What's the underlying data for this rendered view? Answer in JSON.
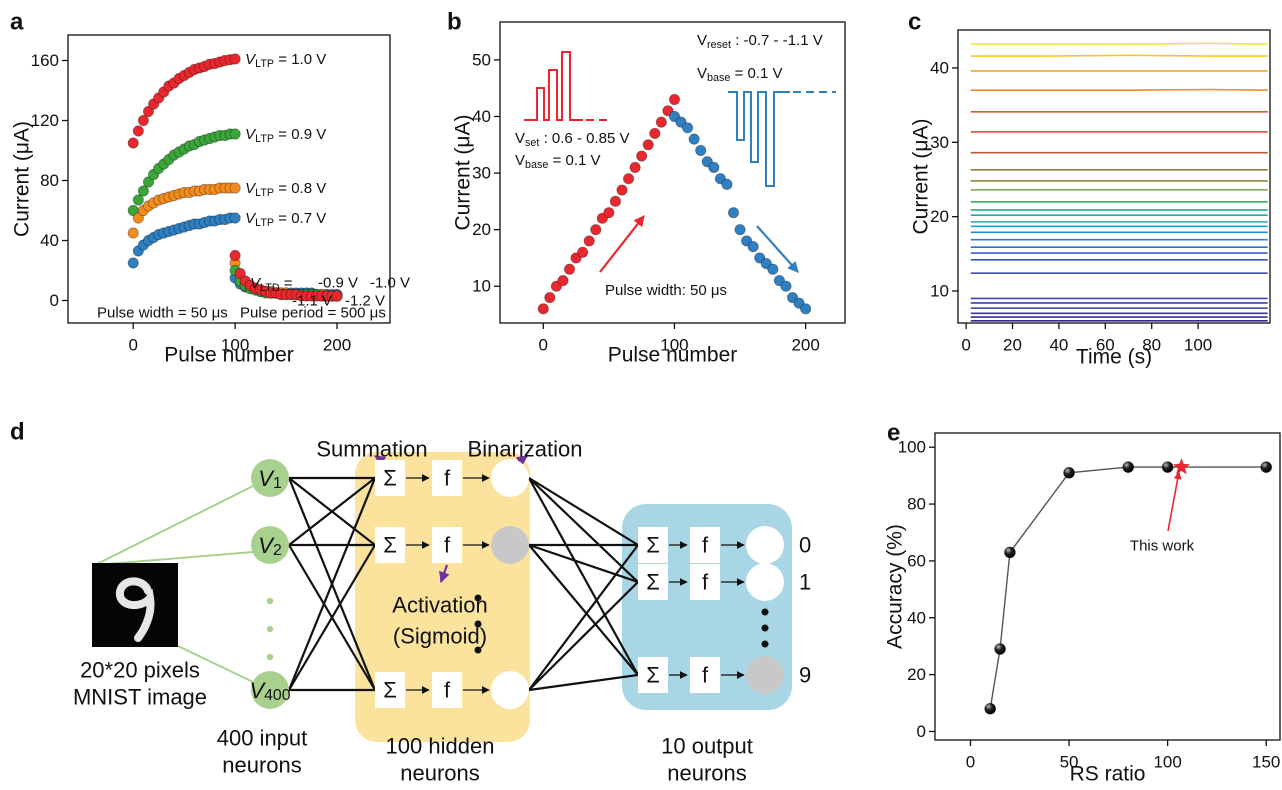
{
  "chart_data": [
    {
      "type": "scatter",
      "panel_label": "a",
      "xlabel": "Pulse number",
      "ylabel": "Current (μA)",
      "xlim": [
        -64,
        252
      ],
      "ylim": [
        -15,
        177
      ],
      "xticks": [
        0,
        100,
        200
      ],
      "yticks": [
        0,
        40,
        80,
        120,
        160
      ],
      "series": [
        {
          "label_parts": [
            {
              "text": "V",
              "style": "italic"
            },
            {
              "text": "LTP",
              "style": "sub"
            },
            {
              "text": " = 1.0 V"
            }
          ],
          "color": "#e8282e",
          "x": [
            0,
            5,
            10,
            15,
            20,
            25,
            30,
            35,
            40,
            45,
            50,
            55,
            60,
            65,
            70,
            75,
            80,
            85,
            90,
            95,
            100
          ],
          "values": [
            105,
            113,
            120,
            126,
            131,
            135,
            139,
            143,
            145,
            148,
            150,
            152,
            154,
            155,
            156,
            157.5,
            158,
            159,
            160,
            160.5,
            161
          ]
        },
        {
          "label_parts": [
            {
              "text": "V",
              "style": "italic"
            },
            {
              "text": "LTP",
              "style": "sub"
            },
            {
              "text": " = 0.9 V"
            }
          ],
          "color": "#3aa63a",
          "x": [
            0,
            5,
            10,
            15,
            20,
            25,
            30,
            35,
            40,
            45,
            50,
            55,
            60,
            65,
            70,
            75,
            80,
            85,
            90,
            95,
            100
          ],
          "values": [
            60,
            67,
            73,
            79,
            84,
            88,
            91,
            94,
            97,
            99,
            101,
            103,
            104,
            106,
            107,
            108,
            109,
            110,
            110,
            111,
            111
          ]
        },
        {
          "label_parts": [
            {
              "text": "V",
              "style": "italic"
            },
            {
              "text": "LTP",
              "style": "sub"
            },
            {
              "text": " = 0.8 V"
            }
          ],
          "color": "#f28c1e",
          "x": [
            0,
            5,
            10,
            15,
            20,
            25,
            30,
            35,
            40,
            45,
            50,
            55,
            60,
            65,
            70,
            75,
            80,
            85,
            90,
            95,
            100
          ],
          "values": [
            45,
            55,
            60,
            63,
            65,
            67,
            68,
            69,
            70,
            71,
            72,
            72,
            73,
            73,
            74,
            74,
            74,
            75,
            75,
            75,
            75
          ]
        },
        {
          "label_parts": [
            {
              "text": "V",
              "style": "italic"
            },
            {
              "text": "LTP",
              "style": "sub"
            },
            {
              "text": " = 0.7 V"
            }
          ],
          "color": "#2f7fc1",
          "x": [
            0,
            5,
            10,
            15,
            20,
            25,
            30,
            35,
            40,
            45,
            50,
            55,
            60,
            65,
            70,
            75,
            80,
            85,
            90,
            95,
            100
          ],
          "values": [
            25,
            33,
            37,
            40,
            42,
            44,
            45,
            46,
            47,
            48,
            49,
            50,
            51,
            51,
            52,
            53,
            53,
            54,
            54,
            55,
            55
          ]
        },
        {
          "name": "-0.9 V",
          "color": "#2f7fc1",
          "x": [
            100,
            105,
            110,
            115,
            120,
            125,
            130,
            135,
            140,
            145,
            150,
            155,
            160,
            165,
            170,
            175,
            180,
            185,
            190,
            195,
            200
          ],
          "values": [
            15,
            11,
            9,
            8,
            7,
            6,
            6,
            5,
            5,
            5,
            5,
            5,
            5,
            5,
            5,
            5,
            4,
            4,
            4,
            4,
            4
          ]
        },
        {
          "name": "-1.0 V",
          "color": "#f28c1e",
          "x": [
            100,
            105,
            110,
            115,
            120,
            125,
            130,
            135,
            140,
            145,
            150,
            155,
            160,
            165,
            170,
            175,
            180,
            185,
            190,
            195,
            200
          ],
          "values": [
            25,
            15,
            11,
            9,
            8,
            7,
            6,
            6,
            5,
            5,
            5,
            4,
            4,
            4,
            4,
            4,
            4,
            4,
            3,
            3,
            3
          ]
        },
        {
          "name": "-1.1 V",
          "color": "#3aa63a",
          "x": [
            100,
            105,
            110,
            115,
            120,
            125,
            130,
            135,
            140,
            145,
            150,
            155,
            160,
            165,
            170,
            175,
            180,
            185,
            190,
            195,
            200
          ],
          "values": [
            20,
            13,
            10,
            8,
            7,
            6,
            5,
            5,
            5,
            4,
            4,
            4,
            4,
            4,
            4,
            4,
            4,
            3,
            3,
            3,
            3
          ]
        },
        {
          "name": "-1.2 V",
          "color": "#e8282e",
          "x": [
            100,
            105,
            110,
            115,
            120,
            125,
            130,
            135,
            140,
            145,
            150,
            155,
            160,
            165,
            170,
            175,
            180,
            185,
            190,
            195,
            200
          ],
          "values": [
            30,
            18,
            13,
            10,
            8,
            7,
            6,
            5,
            5,
            4,
            4,
            4,
            4,
            3,
            3,
            3,
            3,
            3,
            3,
            3,
            3
          ]
        }
      ],
      "ltd_label_parts": [
        {
          "text": "V",
          "style": "italic"
        },
        {
          "text": "LTD",
          "style": "sub"
        },
        {
          "text": " = "
        }
      ],
      "annotations": [
        "Pulse width = 50 μs",
        "Pulse period = 500 μs"
      ]
    },
    {
      "type": "scatter",
      "panel_label": "b",
      "xlabel": "Pulse number",
      "ylabel": "Current (μA)",
      "xlim": [
        -33,
        230
      ],
      "ylim": [
        3.5,
        56.7
      ],
      "xticks": [
        0,
        100,
        200
      ],
      "yticks": [
        10,
        20,
        30,
        40,
        50
      ],
      "series": [
        {
          "color": "#e8282e",
          "x": [
            0,
            5,
            10,
            15,
            20,
            25,
            30,
            35,
            40,
            45,
            50,
            55,
            60,
            65,
            70,
            75,
            80,
            85,
            90,
            95,
            100
          ],
          "values": [
            6,
            8,
            10,
            11,
            13,
            15,
            16,
            18,
            20,
            22,
            23,
            25,
            27,
            29,
            31,
            33,
            35,
            37,
            39,
            41,
            43
          ]
        },
        {
          "color": "#2f7fc1",
          "x": [
            100,
            105,
            110,
            115,
            120,
            125,
            130,
            135,
            140,
            145,
            150,
            155,
            160,
            165,
            170,
            175,
            180,
            185,
            190,
            195,
            200
          ],
          "values": [
            40,
            39,
            38,
            36,
            34,
            32,
            31,
            29,
            28,
            23,
            20,
            18,
            17,
            15,
            14,
            13,
            11,
            10,
            8,
            7,
            6
          ]
        }
      ],
      "annotations": [
        {
          "color": "#e8282e",
          "parts": [
            {
              "text": "V"
            },
            {
              "text": "set",
              "style": "sub"
            },
            {
              "text": " : 0.6 - 0.85 V"
            }
          ]
        },
        {
          "color": "#e8282e",
          "parts": [
            {
              "text": "V"
            },
            {
              "text": "base",
              "style": "sub"
            },
            {
              "text": " = 0.1 V"
            }
          ]
        },
        {
          "color": "#2f7fc1",
          "parts": [
            {
              "text": "V"
            },
            {
              "text": "reset",
              "style": "sub"
            },
            {
              "text": " : -0.7 - -1.1 V"
            }
          ]
        },
        {
          "color": "#2f7fc1",
          "parts": [
            {
              "text": "V"
            },
            {
              "text": "base",
              "style": "sub"
            },
            {
              "text": " = 0.1 V"
            }
          ]
        },
        {
          "color": "#111111",
          "parts": [
            {
              "text": "Pulse width: 50 μs"
            }
          ]
        }
      ]
    },
    {
      "type": "line",
      "panel_label": "c",
      "xlabel": "Time (s)",
      "ylabel": "Current (μA)",
      "xlim": [
        -3.5,
        131
      ],
      "ylim": [
        5.7,
        45.1
      ],
      "xticks": [
        0,
        20,
        40,
        60,
        80,
        100
      ],
      "yticks": [
        10,
        20,
        30,
        40
      ],
      "x": [
        2,
        35,
        70,
        105,
        130
      ],
      "series": [
        {
          "color": "#efe23a",
          "values": [
            43.2,
            43.2,
            43.2,
            43.3,
            43.2
          ]
        },
        {
          "color": "#f4c62c",
          "values": [
            41.6,
            41.6,
            41.7,
            41.6,
            41.6
          ]
        },
        {
          "color": "#f2a426",
          "values": [
            39.6,
            39.6,
            39.6,
            39.6,
            39.6
          ]
        },
        {
          "color": "#ef8a2b",
          "values": [
            37.0,
            37.0,
            37.0,
            37.1,
            37.0
          ]
        },
        {
          "color": "#e8532a",
          "values": [
            34.1,
            34.1,
            34.1,
            34.1,
            34.1
          ]
        },
        {
          "color": "#d8452e",
          "values": [
            31.4,
            31.4,
            31.4,
            31.4,
            31.4
          ]
        },
        {
          "color": "#b55d3b",
          "values": [
            28.6,
            28.6,
            28.6,
            28.6,
            28.6
          ]
        },
        {
          "color": "#9b7a3d",
          "values": [
            26.3,
            26.3,
            26.3,
            26.3,
            26.3
          ]
        },
        {
          "color": "#8a8a3e",
          "values": [
            24.8,
            24.8,
            24.8,
            24.8,
            24.8
          ]
        },
        {
          "color": "#6fa64a",
          "values": [
            23.6,
            23.6,
            23.6,
            23.6,
            23.6
          ]
        },
        {
          "color": "#3faa5d",
          "values": [
            22.0,
            22.0,
            22.0,
            22.0,
            22.0
          ]
        },
        {
          "color": "#2aa887",
          "values": [
            20.9,
            20.9,
            20.9,
            20.9,
            20.9
          ]
        },
        {
          "color": "#23a9a6",
          "values": [
            20.2,
            20.2,
            20.2,
            20.2,
            20.2
          ]
        },
        {
          "color": "#1fa5c0",
          "values": [
            19.3,
            19.3,
            19.3,
            19.3,
            19.3
          ]
        },
        {
          "color": "#1e9fd0",
          "values": [
            18.7,
            18.7,
            18.7,
            18.7,
            18.7
          ]
        },
        {
          "color": "#2390d6",
          "values": [
            17.9,
            17.9,
            17.9,
            17.9,
            17.9
          ]
        },
        {
          "color": "#2a7fd5",
          "values": [
            16.9,
            16.9,
            16.9,
            16.9,
            16.9
          ]
        },
        {
          "color": "#2e6ecb",
          "values": [
            15.9,
            15.9,
            15.9,
            15.9,
            15.9
          ]
        },
        {
          "color": "#3461c3",
          "values": [
            15.1,
            15.1,
            15.1,
            15.1,
            15.1
          ]
        },
        {
          "color": "#3a56bb",
          "values": [
            14.2,
            14.2,
            14.2,
            14.2,
            14.2
          ]
        },
        {
          "color": "#3f4cb5",
          "values": [
            12.4,
            12.4,
            12.4,
            12.4,
            12.4
          ]
        },
        {
          "color": "#4045ad",
          "values": [
            9.0,
            9.0,
            9.0,
            9.0,
            9.0
          ]
        },
        {
          "color": "#3c3fa5",
          "values": [
            8.4,
            8.4,
            8.4,
            8.4,
            8.4
          ]
        },
        {
          "color": "#3a3a9e",
          "values": [
            7.7,
            7.7,
            7.7,
            7.7,
            7.7
          ]
        },
        {
          "color": "#373596",
          "values": [
            7.0,
            7.0,
            7.0,
            7.0,
            7.0
          ]
        },
        {
          "color": "#35308f",
          "values": [
            6.5,
            6.5,
            6.5,
            6.5,
            6.5
          ]
        },
        {
          "color": "#332c88",
          "values": [
            6.0,
            6.0,
            6.0,
            6.0,
            6.0
          ]
        }
      ]
    },
    {
      "type": "scatter",
      "panel_label": "e",
      "xlabel": "RS ratio",
      "ylabel": "Accuracy (%)",
      "xlim": [
        -18,
        157
      ],
      "ylim": [
        -3,
        105
      ],
      "xticks": [
        0,
        50,
        100,
        150
      ],
      "yticks": [
        0,
        20,
        40,
        60,
        80,
        100
      ],
      "series": [
        {
          "color": "#1a1a1a",
          "line_color": "#555555",
          "x": [
            10,
            15,
            20,
            50,
            80,
            100,
            150
          ],
          "values": [
            8,
            29,
            63,
            91,
            93,
            93,
            93
          ]
        }
      ],
      "star": {
        "x": 107,
        "value": 93,
        "color": "#e8282e"
      },
      "annotation": {
        "text": "This work",
        "color": "#e8282e"
      }
    }
  ],
  "diagram": {
    "panel_label": "d",
    "summation": "Summation",
    "binarization": "Binarization",
    "activation": [
      "Activation",
      "(Sigmoid)"
    ],
    "image_caption": [
      "20*20 pixels",
      "MNIST image"
    ],
    "inputs": [
      [
        {
          "text": "V",
          "style": "italic"
        },
        {
          "text": "1",
          "style": "sub"
        }
      ],
      [
        {
          "text": "V",
          "style": "italic"
        },
        {
          "text": "2",
          "style": "sub"
        }
      ],
      [
        {
          "text": "V",
          "style": "italic"
        },
        {
          "text": "400",
          "style": "sub"
        }
      ]
    ],
    "input_caption": [
      "400 input",
      "neurons"
    ],
    "hidden": [
      {
        "sum": "Σ",
        "act": "f"
      },
      {
        "sum": "Σ",
        "act": "f"
      },
      {
        "sum": "Σ",
        "act": "f"
      }
    ],
    "hidden_caption": [
      "100 hidden",
      "neurons"
    ],
    "outputs": [
      {
        "sum": "Σ",
        "act": "f",
        "label": "0"
      },
      {
        "sum": "Σ",
        "act": "f",
        "label": "1"
      },
      {
        "sum": "Σ",
        "act": "f",
        "label": "9"
      }
    ],
    "output_caption": [
      "10 output",
      "neurons"
    ]
  }
}
